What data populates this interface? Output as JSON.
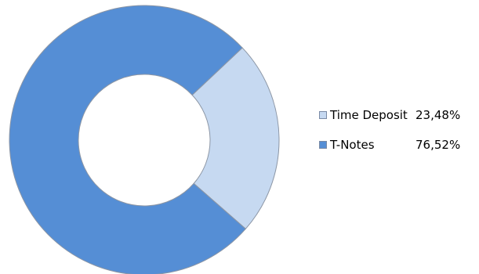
{
  "chart_data": {
    "type": "pie",
    "title": "",
    "series": [
      {
        "values": [
          23.48,
          76.52
        ],
        "value_labels": [
          "23,48%",
          "76,52%"
        ]
      }
    ],
    "categories": [
      "Time Deposit",
      "T-Notes"
    ],
    "colors": [
      "#c6d9f1",
      "#558ed5"
    ],
    "legend_placement": "right",
    "style": "donut"
  }
}
